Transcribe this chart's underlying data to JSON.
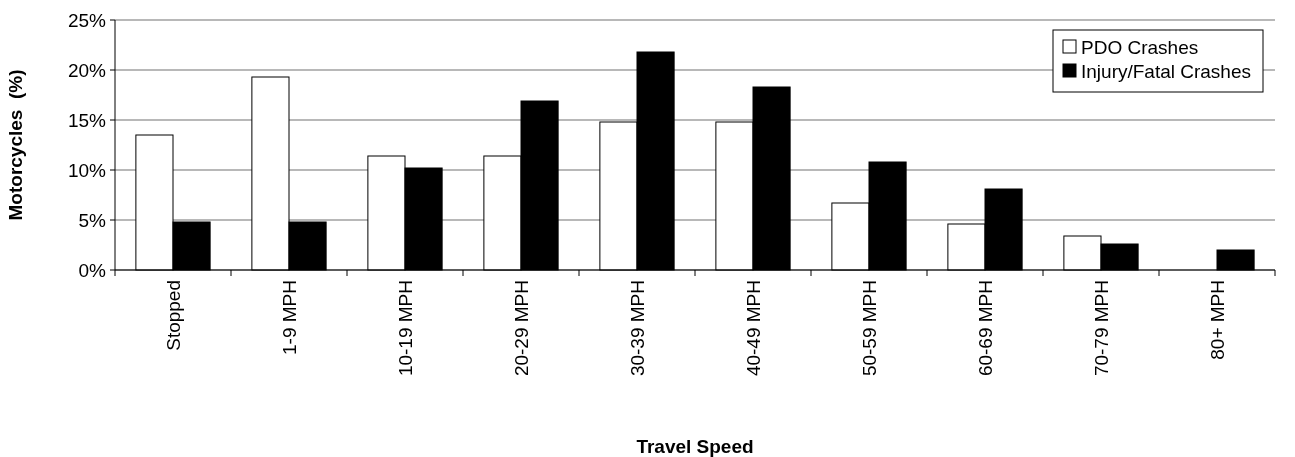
{
  "chart_data": {
    "type": "bar",
    "xlabel": "Travel Speed",
    "ylabel": "Motorcycles  (%)",
    "categories": [
      "Stopped",
      "1-9 MPH",
      "10-19 MPH",
      "20-29 MPH",
      "30-39 MPH",
      "40-49 MPH",
      "50-59 MPH",
      "60-69 MPH",
      "70-79 MPH",
      "80+ MPH"
    ],
    "series": [
      {
        "name": "PDO Crashes",
        "color": "#ffffff",
        "values": [
          13.5,
          19.3,
          11.4,
          11.4,
          14.8,
          14.8,
          6.7,
          4.6,
          3.4,
          0
        ]
      },
      {
        "name": "Injury/Fatal Crashes",
        "color": "#000000",
        "values": [
          4.8,
          4.8,
          10.2,
          16.9,
          21.8,
          18.3,
          10.8,
          8.1,
          2.6,
          2.0
        ]
      }
    ],
    "ylim": [
      0,
      25
    ],
    "yticks": [
      {
        "value": 0,
        "label": "0%"
      },
      {
        "value": 5,
        "label": "5%"
      },
      {
        "value": 10,
        "label": "10%"
      },
      {
        "value": 15,
        "label": "15%"
      },
      {
        "value": 20,
        "label": "20%"
      },
      {
        "value": 25,
        "label": "25%"
      }
    ],
    "grid": "y",
    "legend": "top right"
  }
}
